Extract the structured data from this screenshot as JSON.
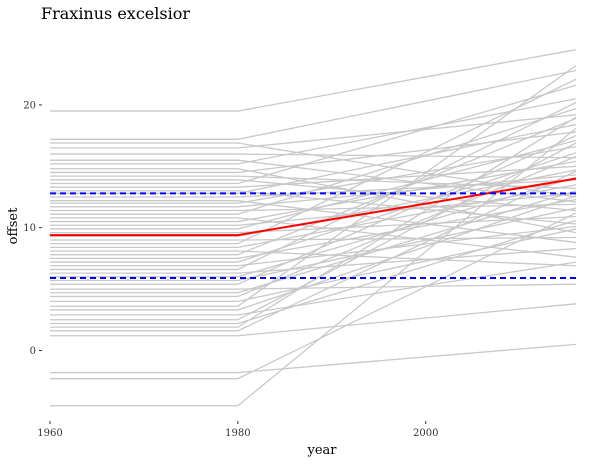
{
  "chart_data": {
    "type": "line",
    "title": "Fraxinus excelsior",
    "xlabel": "year",
    "ylabel": "offset",
    "xlim": [
      1960,
      2016
    ],
    "ylim": [
      -5.5,
      24.8
    ],
    "x_ticks": [
      1960,
      1980,
      2000
    ],
    "y_ticks": [
      0,
      10,
      20
    ],
    "grid": false,
    "legend": "none",
    "x": [
      1960,
      1980,
      2016
    ],
    "background_lines": {
      "color": "#c8c8c8",
      "start_values": [
        19.5,
        17.2,
        16.9,
        16.5,
        16.0,
        15.5,
        15.2,
        14.8,
        14.5,
        14.2,
        13.9,
        13.6,
        13.3,
        13.0,
        12.8,
        12.5,
        12.2,
        12.0,
        11.7,
        11.4,
        11.1,
        10.8,
        10.5,
        10.2,
        9.9,
        9.6,
        9.3,
        9.0,
        8.7,
        8.4,
        8.1,
        7.8,
        7.5,
        7.2,
        6.9,
        6.6,
        6.3,
        6.0,
        5.7,
        5.4,
        5.0,
        4.7,
        4.4,
        4.0,
        3.6,
        3.3,
        2.9,
        2.5,
        2.2,
        1.9,
        1.6,
        1.2,
        -1.8,
        -2.3,
        -4.5
      ],
      "end_values": [
        24.5,
        22.8,
        12.5,
        19.2,
        15.7,
        12.1,
        20.5,
        9.6,
        17.8,
        13.2,
        11.4,
        21.6,
        15.0,
        10.3,
        18.4,
        13.9,
        8.8,
        16.6,
        14.3,
        11.9,
        19.7,
        7.6,
        15.4,
        12.8,
        17.1,
        10.9,
        14.7,
        9.2,
        22.1,
        13.5,
        6.9,
        18.9,
        12.3,
        16.1,
        10.1,
        20.2,
        8.3,
        14.1,
        11.6,
        17.5,
        5.4,
        13.0,
        15.8,
        9.9,
        23.2,
        12.6,
        7.2,
        16.9,
        10.6,
        19.0,
        14.6,
        3.8,
        0.5,
        11.2,
        18.1
      ]
    },
    "series": [
      {
        "name": "",
        "color": "#ff0000",
        "style": "solid",
        "values": [
          9.4,
          9.4,
          14.0
        ]
      },
      {
        "name": "",
        "color": "#0000ff",
        "style": "dashed",
        "values": [
          12.8,
          12.8,
          12.8
        ]
      },
      {
        "name": "",
        "color": "#0000ff",
        "style": "dashed",
        "values": [
          5.9,
          5.9,
          5.9
        ]
      }
    ]
  }
}
